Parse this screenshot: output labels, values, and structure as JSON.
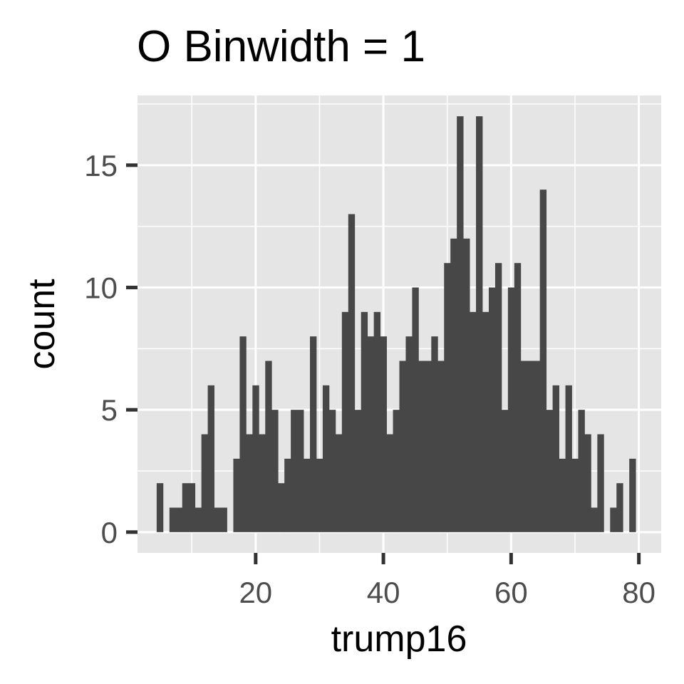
{
  "chart_data": {
    "type": "bar",
    "title": "O Binwidth = 1",
    "xlabel": "trump16",
    "ylabel": "count",
    "bin_width": 1,
    "xlim": [
      1.5,
      83.5
    ],
    "ylim": [
      -0.85,
      17.85
    ],
    "x_ticks": [
      20,
      40,
      60,
      80
    ],
    "y_ticks": [
      0,
      5,
      10,
      15
    ],
    "x_tick_labels": [
      "20",
      "40",
      "60",
      "80"
    ],
    "y_tick_labels": [
      "0",
      "5",
      "10",
      "15"
    ],
    "grid": true,
    "panel_background": "#e5e5e5",
    "bar_color": "#474747",
    "bins_x": [
      5,
      6,
      7,
      8,
      9,
      10,
      11,
      12,
      13,
      14,
      15,
      16,
      17,
      18,
      19,
      20,
      21,
      22,
      23,
      24,
      25,
      26,
      27,
      28,
      29,
      30,
      31,
      32,
      33,
      34,
      35,
      36,
      37,
      38,
      39,
      40,
      41,
      42,
      43,
      44,
      45,
      46,
      47,
      48,
      49,
      50,
      51,
      52,
      53,
      54,
      55,
      56,
      57,
      58,
      59,
      60,
      61,
      62,
      63,
      64,
      65,
      66,
      67,
      68,
      69,
      70,
      71,
      72,
      73,
      74,
      75,
      76,
      77,
      78,
      79,
      80
    ],
    "counts": [
      2,
      0,
      1,
      1,
      2,
      2,
      1,
      4,
      6,
      1,
      1,
      0,
      3,
      8,
      4,
      6,
      4,
      7,
      5,
      2,
      3,
      5,
      5,
      3,
      8,
      3,
      6,
      5,
      4,
      9,
      13,
      5,
      9,
      8,
      9,
      8,
      4,
      5,
      7,
      8,
      10,
      7,
      7,
      8,
      7,
      11,
      12,
      17,
      12,
      9,
      17,
      9,
      10,
      11,
      5,
      10,
      11,
      7,
      7,
      7,
      14,
      5,
      6,
      3,
      6,
      3,
      5,
      4,
      1,
      4,
      0,
      1,
      2,
      0,
      3,
      0
    ]
  }
}
